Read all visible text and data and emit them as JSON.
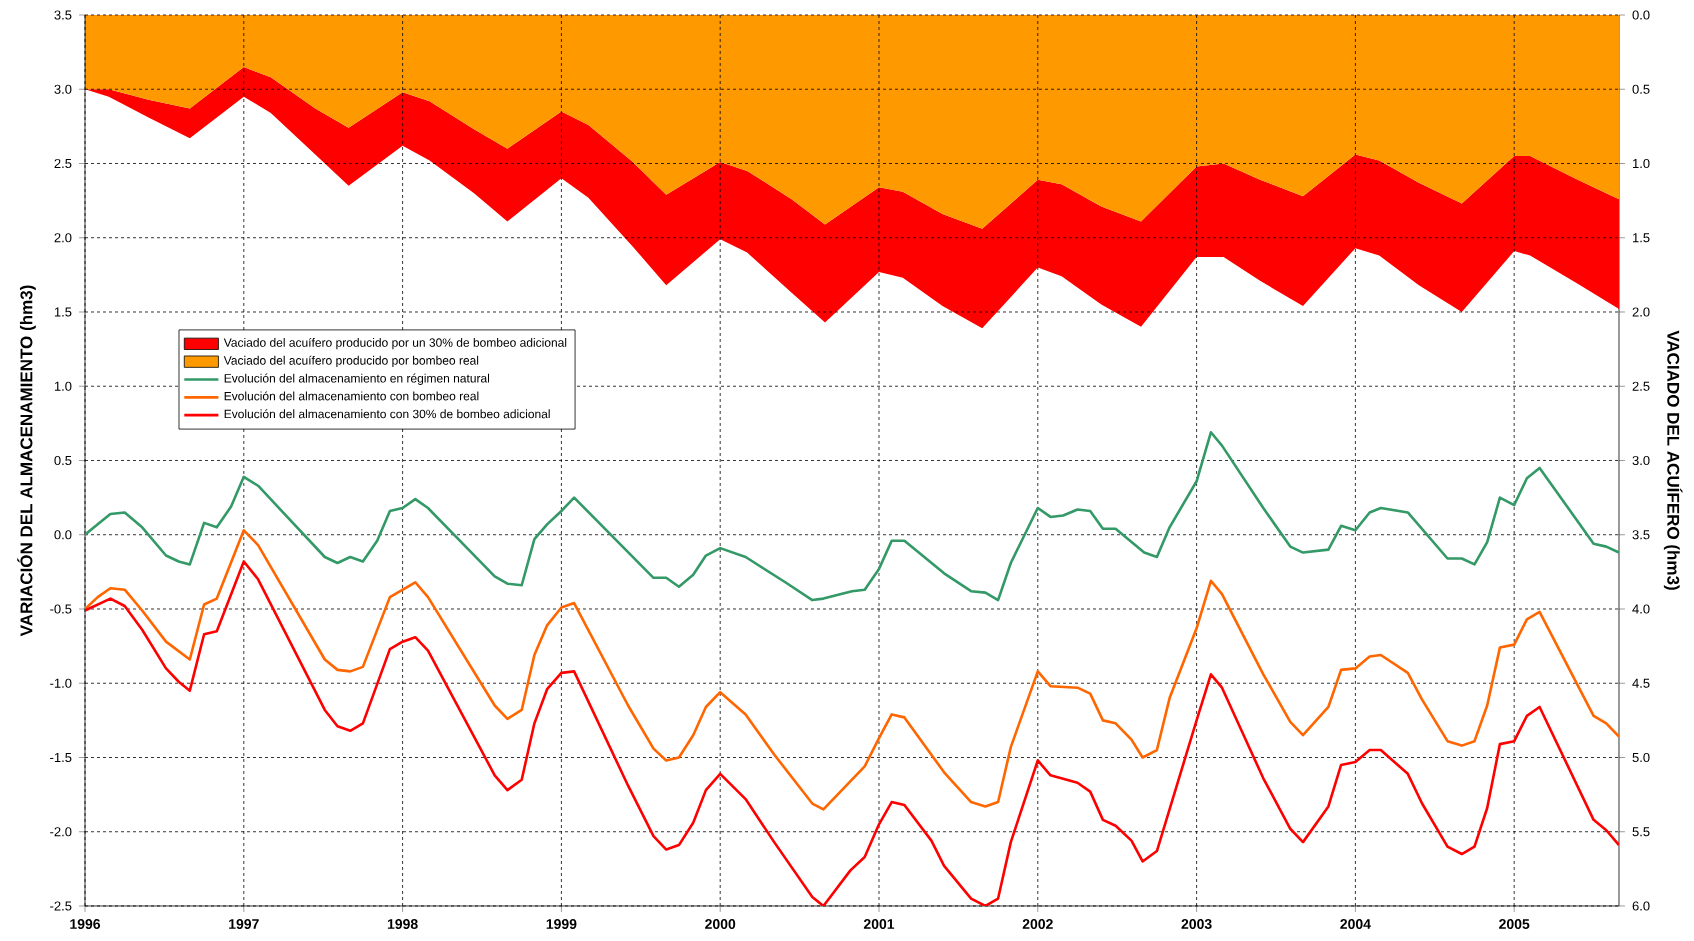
{
  "chart_data": {
    "type": "line",
    "ylabel": "VARIACIÓN DEL ALMACENAMIENTO (hm3)",
    "y2label": "VACIADO DEL ACUÍFERO (hm3)",
    "xlim": [
      1996,
      2005.66
    ],
    "xticks": [
      1996,
      1997,
      1998,
      1999,
      2000,
      2001,
      2002,
      2003,
      2004,
      2005
    ],
    "ylim": [
      -2.5,
      3.5
    ],
    "yticks": [
      -2.5,
      {
        "value": -2,
        "label": "-2.0"
      },
      -1.5,
      {
        "value": -1,
        "label": "-1.0"
      },
      -0.5,
      {
        "value": 0,
        "label": "0.0"
      },
      0.5,
      {
        "value": 1,
        "label": "1.0"
      },
      1.5,
      {
        "value": 2,
        "label": "2.0"
      },
      2.5,
      {
        "value": 3,
        "label": "3.0"
      },
      3.5
    ],
    "y2lim": [
      6,
      0
    ],
    "y2ticks": [
      {
        "value": 0,
        "label": "0.0"
      },
      0.5,
      {
        "value": 1,
        "label": "1.0"
      },
      1.5,
      {
        "value": 2,
        "label": "2.0"
      },
      2.5,
      {
        "value": 3,
        "label": "3.0"
      },
      3.5,
      {
        "value": 4,
        "label": "4.0"
      },
      4.5,
      {
        "value": 5,
        "label": "5.0"
      },
      5.5,
      {
        "value": 6,
        "label": "6.0"
      }
    ],
    "grid": true,
    "legend": "left",
    "stacked": true,
    "series": [
      {
        "name": "Vaciado del acuífero producido por bombeo real",
        "type": "area",
        "axis": "y2",
        "color": "#ff9900",
        "x": [
          1996.0,
          1996.15,
          1996.4,
          1996.66,
          1997.0,
          1997.17,
          1997.45,
          1997.66,
          1998.0,
          1998.17,
          1998.45,
          1998.66,
          1999.0,
          1999.17,
          1999.45,
          1999.66,
          2000.0,
          2000.17,
          2000.45,
          2000.66,
          2001.0,
          2001.15,
          2001.4,
          2001.65,
          2002.0,
          2002.15,
          2002.4,
          2002.65,
          2003.0,
          2003.17,
          2003.4,
          2003.67,
          2004.0,
          2004.15,
          2004.4,
          2004.67,
          2005.0,
          2005.1,
          2005.4,
          2005.66
        ],
        "values": [
          0.5,
          0.5,
          0.57,
          0.63,
          0.35,
          0.42,
          0.63,
          0.76,
          0.52,
          0.58,
          0.77,
          0.9,
          0.65,
          0.74,
          0.99,
          1.21,
          0.99,
          1.05,
          1.24,
          1.41,
          1.16,
          1.19,
          1.34,
          1.44,
          1.11,
          1.14,
          1.29,
          1.39,
          1.02,
          1.0,
          1.11,
          1.22,
          0.94,
          0.98,
          1.13,
          1.27,
          0.95,
          0.95,
          1.11,
          1.24
        ]
      },
      {
        "name": "Vaciado del acuífero producido por un 30% de bombeo adicional",
        "type": "area",
        "axis": "y2",
        "color": "#ff0000",
        "x": [
          1996.0,
          1996.15,
          1996.4,
          1996.66,
          1997.0,
          1997.17,
          1997.45,
          1997.66,
          1998.0,
          1998.17,
          1998.45,
          1998.66,
          1999.0,
          1999.17,
          1999.45,
          1999.66,
          2000.0,
          2000.17,
          2000.45,
          2000.66,
          2001.0,
          2001.15,
          2001.4,
          2001.65,
          2002.0,
          2002.15,
          2002.4,
          2002.65,
          2003.0,
          2003.17,
          2003.4,
          2003.67,
          2004.0,
          2004.15,
          2004.4,
          2004.67,
          2005.0,
          2005.1,
          2005.4,
          2005.66
        ],
        "values": [
          0,
          0.05,
          0.12,
          0.2,
          0.2,
          0.24,
          0.31,
          0.39,
          0.36,
          0.4,
          0.43,
          0.49,
          0.45,
          0.49,
          0.57,
          0.61,
          0.52,
          0.55,
          0.63,
          0.66,
          0.57,
          0.58,
          0.62,
          0.67,
          0.59,
          0.62,
          0.66,
          0.71,
          0.61,
          0.63,
          0.68,
          0.74,
          0.63,
          0.64,
          0.69,
          0.73,
          0.64,
          0.67,
          0.7,
          0.74
        ]
      },
      {
        "name": "Evolución del almacenamiento en régimen natural",
        "color": "#339966",
        "x": [
          1996.0,
          1996.08,
          1996.16,
          1996.25,
          1996.36,
          1996.51,
          1996.59,
          1996.66,
          1996.75,
          1996.83,
          1996.92,
          1997.0,
          1997.09,
          1997.51,
          1997.59,
          1997.67,
          1997.75,
          1997.84,
          1997.92,
          1998.0,
          1998.08,
          1998.16,
          1998.58,
          1998.66,
          1998.75,
          1998.83,
          1998.91,
          1999.0,
          1999.08,
          1999.58,
          1999.66,
          1999.74,
          1999.83,
          1999.91,
          2000.0,
          2000.16,
          2000.41,
          2000.58,
          2000.65,
          2000.83,
          2000.91,
          2001.0,
          2001.08,
          2001.16,
          2001.41,
          2001.58,
          2001.67,
          2001.75,
          2001.83,
          2002.0,
          2002.08,
          2002.16,
          2002.25,
          2002.33,
          2002.41,
          2002.49,
          2002.67,
          2002.75,
          2002.83,
          2003.0,
          2003.09,
          2003.16,
          2003.42,
          2003.59,
          2003.67,
          2003.83,
          2003.91,
          2004.0,
          2004.09,
          2004.16,
          2004.33,
          2004.58,
          2004.67,
          2004.75,
          2004.83,
          2004.91,
          2005.0,
          2005.08,
          2005.16,
          2005.5,
          2005.58,
          2005.66
        ],
        "values": [
          0.0,
          0.07,
          0.14,
          0.15,
          0.05,
          -0.14,
          -0.18,
          -0.2,
          0.08,
          0.05,
          0.19,
          0.39,
          0.33,
          -0.15,
          -0.19,
          -0.15,
          -0.18,
          -0.04,
          0.16,
          0.18,
          0.24,
          0.18,
          -0.28,
          -0.33,
          -0.34,
          -0.03,
          0.07,
          0.16,
          0.25,
          -0.29,
          -0.29,
          -0.35,
          -0.27,
          -0.14,
          -0.09,
          -0.15,
          -0.32,
          -0.44,
          -0.43,
          -0.38,
          -0.37,
          -0.23,
          -0.04,
          -0.04,
          -0.26,
          -0.38,
          -0.39,
          -0.44,
          -0.19,
          0.18,
          0.12,
          0.13,
          0.17,
          0.16,
          0.04,
          0.04,
          -0.12,
          -0.15,
          0.05,
          0.36,
          0.69,
          0.6,
          0.18,
          -0.08,
          -0.12,
          -0.1,
          0.06,
          0.03,
          0.15,
          0.18,
          0.15,
          -0.16,
          -0.16,
          -0.2,
          -0.05,
          0.25,
          0.2,
          0.38,
          0.45,
          -0.06,
          -0.08,
          -0.12
        ]
      },
      {
        "name": "Evolución del almacenamiento con bombeo real",
        "color": "#ff6600",
        "x": [
          1996.0,
          1996.08,
          1996.16,
          1996.25,
          1996.36,
          1996.51,
          1996.66,
          1996.75,
          1996.83,
          1997.0,
          1997.09,
          1997.51,
          1997.59,
          1997.67,
          1997.75,
          1997.92,
          1998.08,
          1998.16,
          1998.58,
          1998.66,
          1998.75,
          1998.83,
          1998.91,
          1999.0,
          1999.08,
          1999.42,
          1999.58,
          1999.66,
          1999.74,
          1999.83,
          1999.91,
          2000.0,
          2000.16,
          2000.34,
          2000.58,
          2000.65,
          2000.91,
          2001.0,
          2001.08,
          2001.16,
          2001.41,
          2001.58,
          2001.67,
          2001.75,
          2001.83,
          2002.0,
          2002.08,
          2002.25,
          2002.33,
          2002.41,
          2002.49,
          2002.59,
          2002.66,
          2002.75,
          2002.83,
          2003.0,
          2003.09,
          2003.16,
          2003.42,
          2003.59,
          2003.67,
          2003.83,
          2003.91,
          2004.0,
          2004.09,
          2004.16,
          2004.33,
          2004.42,
          2004.58,
          2004.67,
          2004.75,
          2004.83,
          2004.91,
          2005.0,
          2005.08,
          2005.16,
          2005.5,
          2005.58,
          2005.66
        ],
        "values": [
          -0.5,
          -0.42,
          -0.36,
          -0.37,
          -0.51,
          -0.72,
          -0.84,
          -0.47,
          -0.43,
          0.03,
          -0.07,
          -0.84,
          -0.91,
          -0.92,
          -0.89,
          -0.42,
          -0.32,
          -0.42,
          -1.15,
          -1.24,
          -1.18,
          -0.81,
          -0.61,
          -0.49,
          -0.46,
          -1.15,
          -1.44,
          -1.52,
          -1.5,
          -1.35,
          -1.16,
          -1.06,
          -1.21,
          -1.48,
          -1.81,
          -1.85,
          -1.56,
          -1.37,
          -1.21,
          -1.23,
          -1.6,
          -1.8,
          -1.83,
          -1.8,
          -1.43,
          -0.92,
          -1.02,
          -1.03,
          -1.07,
          -1.25,
          -1.27,
          -1.38,
          -1.5,
          -1.45,
          -1.1,
          -0.63,
          -0.31,
          -0.4,
          -0.94,
          -1.26,
          -1.35,
          -1.16,
          -0.91,
          -0.9,
          -0.82,
          -0.81,
          -0.93,
          -1.11,
          -1.39,
          -1.42,
          -1.39,
          -1.15,
          -0.76,
          -0.74,
          -0.57,
          -0.52,
          -1.22,
          -1.27,
          -1.36
        ]
      },
      {
        "name": "Evolución del almacenamiento con 30% de bombeo adicional",
        "color": "#ff0000",
        "x": [
          1996.0,
          1996.16,
          1996.25,
          1996.36,
          1996.51,
          1996.59,
          1996.66,
          1996.75,
          1996.83,
          1997.0,
          1997.09,
          1997.51,
          1997.59,
          1997.67,
          1997.75,
          1997.92,
          1998.0,
          1998.08,
          1998.16,
          1998.58,
          1998.66,
          1998.75,
          1998.83,
          1998.91,
          1999.0,
          1999.08,
          1999.42,
          1999.58,
          1999.66,
          1999.74,
          1999.83,
          1999.91,
          2000.0,
          2000.16,
          2000.34,
          2000.58,
          2000.65,
          2000.82,
          2000.91,
          2001.0,
          2001.08,
          2001.16,
          2001.33,
          2001.41,
          2001.58,
          2001.67,
          2001.75,
          2001.83,
          2002.0,
          2002.08,
          2002.25,
          2002.33,
          2002.41,
          2002.49,
          2002.59,
          2002.66,
          2002.75,
          2003.0,
          2003.09,
          2003.16,
          2003.42,
          2003.59,
          2003.67,
          2003.83,
          2003.91,
          2004.0,
          2004.09,
          2004.16,
          2004.33,
          2004.42,
          2004.58,
          2004.67,
          2004.75,
          2004.83,
          2004.91,
          2005.0,
          2005.08,
          2005.16,
          2005.5,
          2005.58,
          2005.66
        ],
        "values": [
          -0.51,
          -0.43,
          -0.48,
          -0.64,
          -0.9,
          -0.99,
          -1.05,
          -0.67,
          -0.65,
          -0.18,
          -0.3,
          -1.18,
          -1.29,
          -1.32,
          -1.27,
          -0.77,
          -0.72,
          -0.69,
          -0.78,
          -1.62,
          -1.72,
          -1.65,
          -1.27,
          -1.04,
          -0.93,
          -0.92,
          -1.69,
          -2.03,
          -2.12,
          -2.09,
          -1.94,
          -1.72,
          -1.61,
          -1.78,
          -2.07,
          -2.44,
          -2.5,
          -2.26,
          -2.17,
          -1.95,
          -1.8,
          -1.82,
          -2.06,
          -2.23,
          -2.45,
          -2.5,
          -2.45,
          -2.07,
          -1.52,
          -1.62,
          -1.67,
          -1.73,
          -1.92,
          -1.96,
          -2.06,
          -2.2,
          -2.13,
          -1.25,
          -0.94,
          -1.03,
          -1.64,
          -1.98,
          -2.07,
          -1.83,
          -1.55,
          -1.53,
          -1.45,
          -1.45,
          -1.61,
          -1.81,
          -2.1,
          -2.15,
          -2.1,
          -1.84,
          -1.41,
          -1.39,
          -1.22,
          -1.16,
          -1.92,
          -1.99,
          -2.09
        ]
      }
    ]
  }
}
